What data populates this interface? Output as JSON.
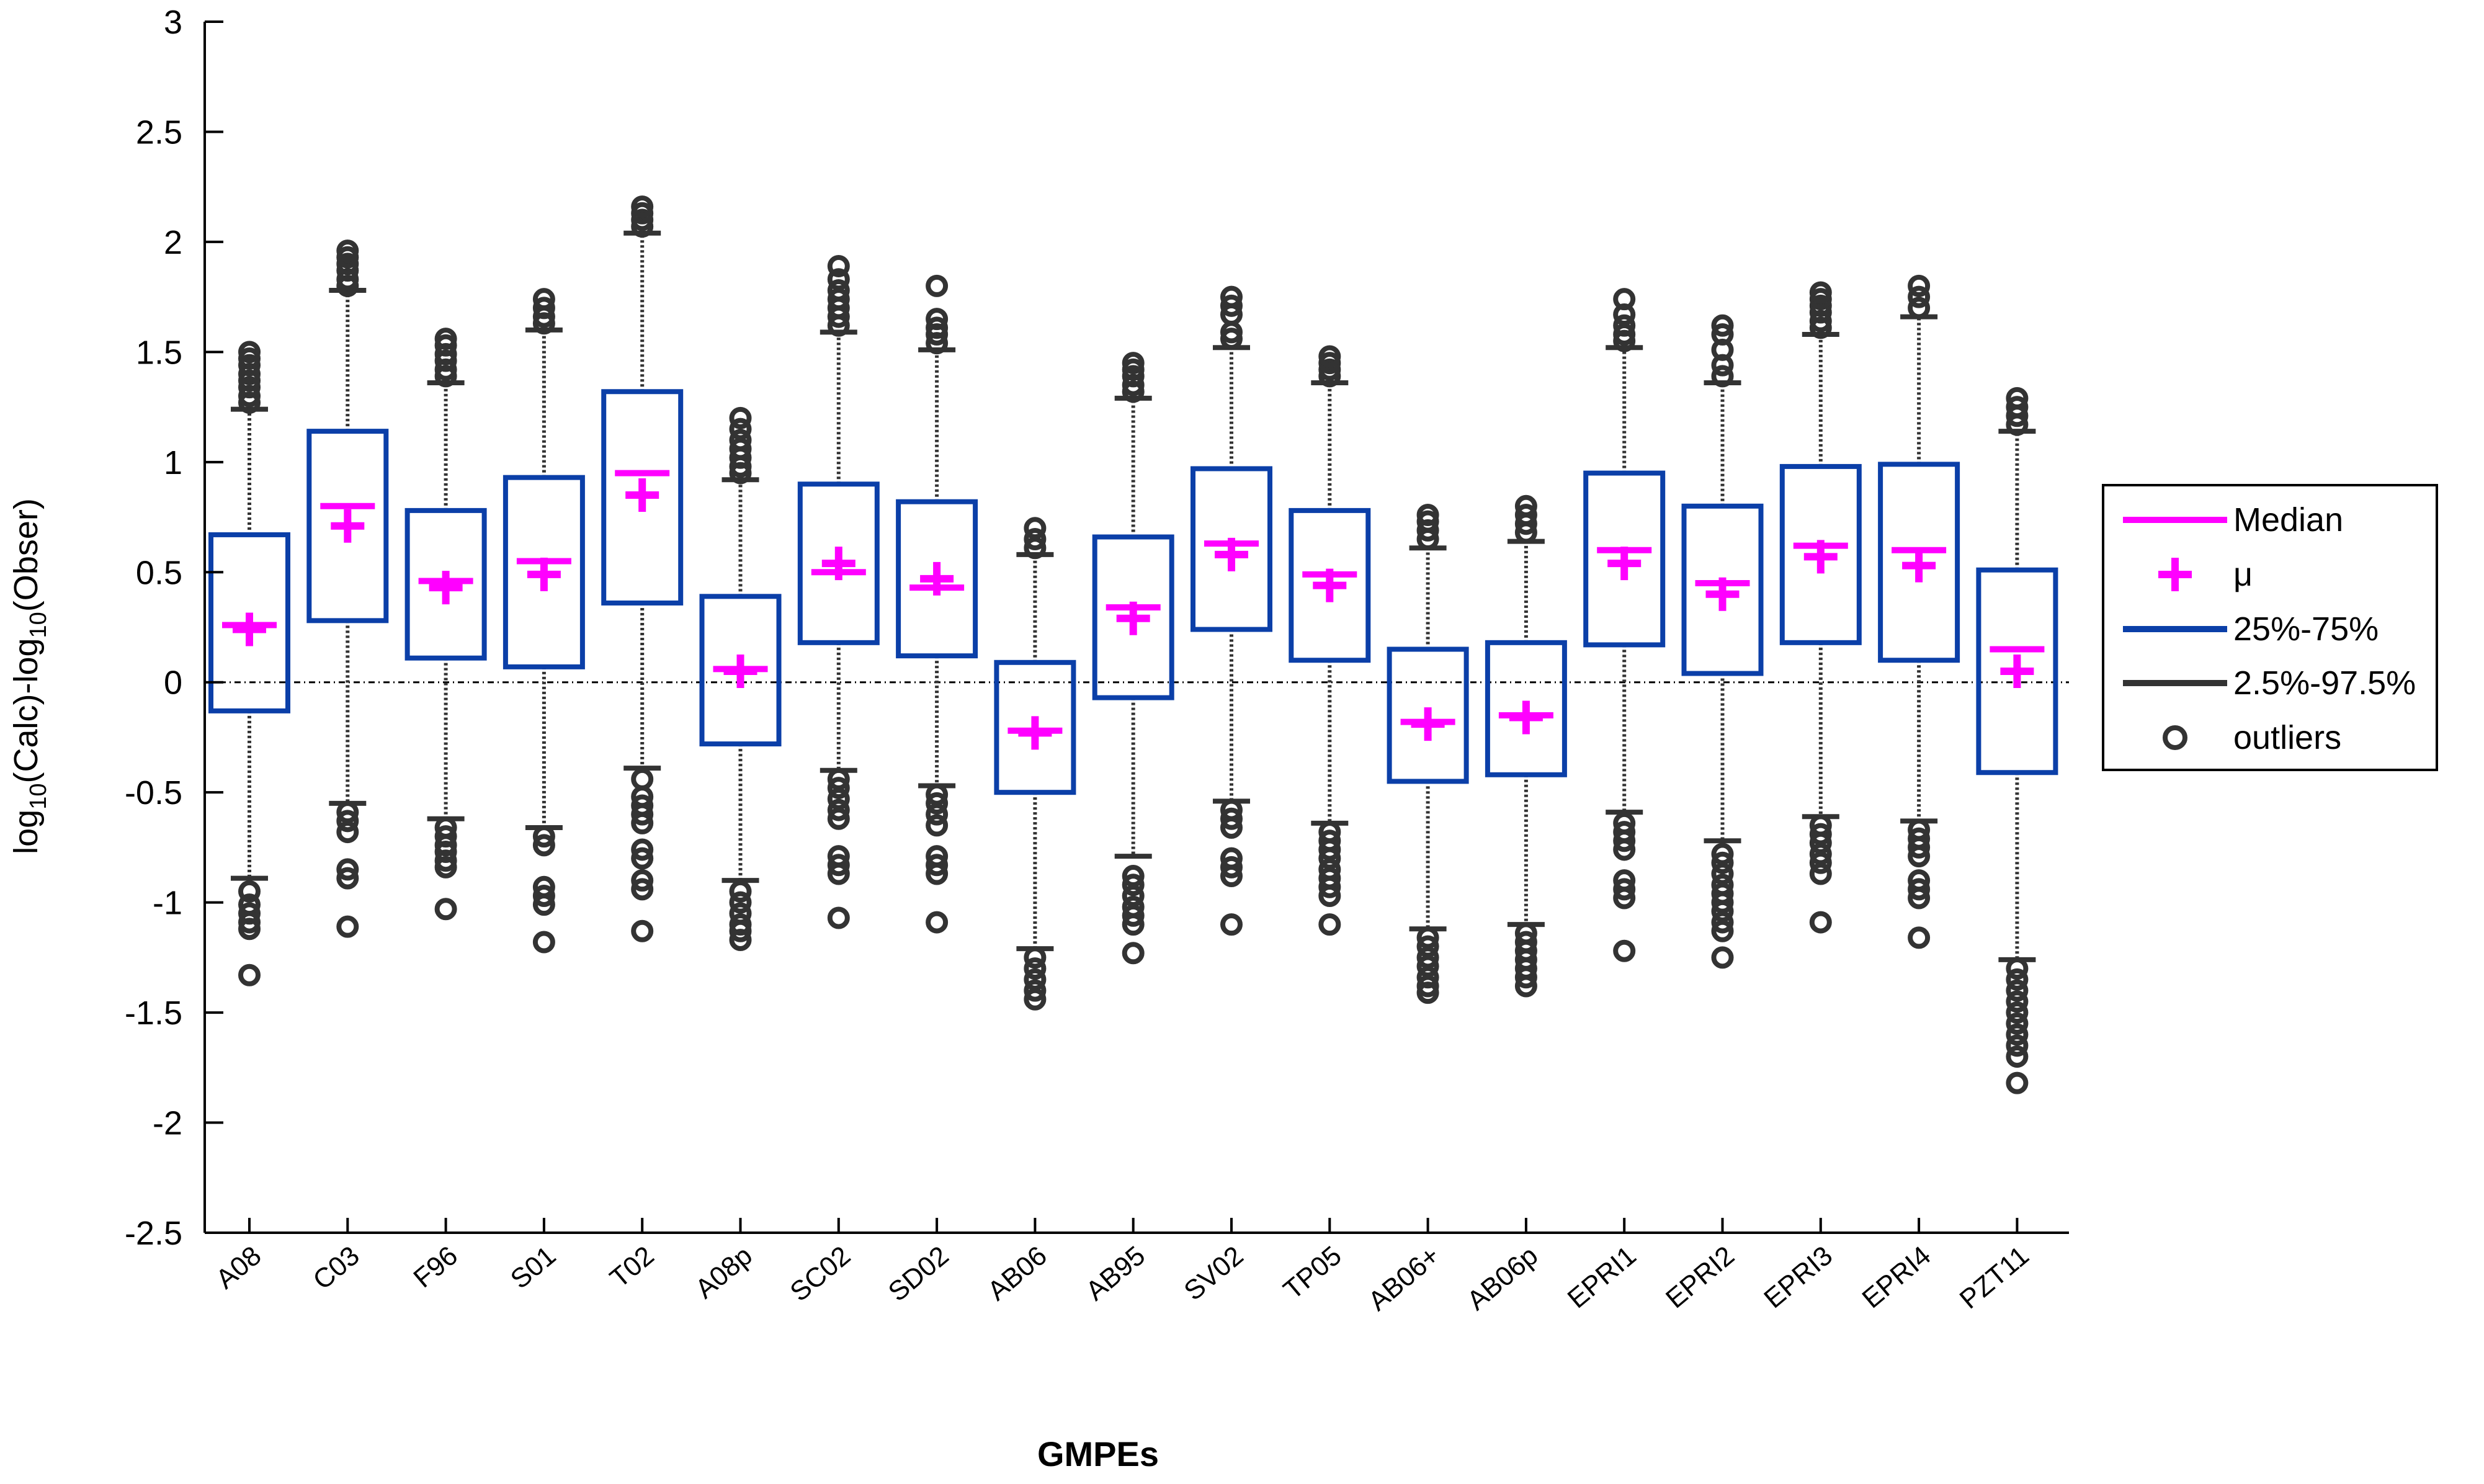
{
  "chart_data": {
    "type": "box",
    "xlabel": "GMPEs",
    "ylabel": {
      "prefix": "log",
      "sub1": "10",
      "mid": "(Calc)-log",
      "sub2": "10",
      "suffix": "(Obser)"
    },
    "ylim": [
      -2.5,
      3
    ],
    "yticks": [
      -2.5,
      -2,
      -1.5,
      -1,
      -0.5,
      0,
      0.5,
      1,
      1.5,
      2,
      2.5,
      3
    ],
    "ytick_labels": [
      "-2.5",
      "-2",
      "-1.5",
      "-1",
      "-0.5",
      "0",
      "0.5",
      "1",
      "1.5",
      "2",
      "2.5",
      "3"
    ],
    "reference_line": 0,
    "colors": {
      "median": "#ff00ff",
      "mean": "#ff00ff",
      "box": "#0b3fa8",
      "whisker": "#333333",
      "outlier": "#333333",
      "reference": "#000000"
    },
    "legend": {
      "placement": "right",
      "entries": [
        {
          "key": "median",
          "label": "Median"
        },
        {
          "key": "mean",
          "label": "μ"
        },
        {
          "key": "box",
          "label": "25%-75%"
        },
        {
          "key": "whisker",
          "label": "2.5%-97.5%"
        },
        {
          "key": "outlier",
          "label": "outliers"
        }
      ]
    },
    "categories": [
      "A08",
      "C03",
      "F96",
      "S01",
      "T02",
      "A08p",
      "SC02",
      "SD02",
      "AB06",
      "AB95",
      "SV02",
      "TP05",
      "AB06+",
      "AB06p",
      "EPRI1",
      "EPRI2",
      "EPRI3",
      "EPRI4",
      "PZT11"
    ],
    "series": [
      {
        "label": "A08",
        "q1": -0.13,
        "q3": 0.67,
        "median": 0.26,
        "mean": 0.24,
        "whisker_low": -0.89,
        "whisker_high": 1.24,
        "outliers_high": [
          1.27,
          1.3,
          1.34,
          1.37,
          1.4,
          1.44,
          1.47,
          1.5
        ],
        "outliers_low": [
          -0.95,
          -1.01,
          -1.05,
          -1.09,
          -1.12,
          -1.33
        ]
      },
      {
        "label": "C03",
        "q1": 0.28,
        "q3": 1.14,
        "median": 0.8,
        "mean": 0.71,
        "whisker_low": -0.55,
        "whisker_high": 1.78,
        "outliers_high": [
          1.8,
          1.83,
          1.87,
          1.9,
          1.93,
          1.96
        ],
        "outliers_low": [
          -0.59,
          -0.63,
          -0.68,
          -0.85,
          -0.89,
          -1.11
        ]
      },
      {
        "label": "F96",
        "q1": 0.11,
        "q3": 0.78,
        "median": 0.46,
        "mean": 0.43,
        "whisker_low": -0.62,
        "whisker_high": 1.36,
        "outliers_high": [
          1.39,
          1.42,
          1.46,
          1.49,
          1.53,
          1.56
        ],
        "outliers_low": [
          -0.66,
          -0.7,
          -0.74,
          -0.77,
          -0.81,
          -0.84,
          -1.03
        ]
      },
      {
        "label": "S01",
        "q1": 0.07,
        "q3": 0.93,
        "median": 0.55,
        "mean": 0.49,
        "whisker_low": -0.66,
        "whisker_high": 1.6,
        "outliers_high": [
          1.63,
          1.66,
          1.7,
          1.74
        ],
        "outliers_low": [
          -0.7,
          -0.74,
          -0.93,
          -0.97,
          -1.01,
          -1.18
        ]
      },
      {
        "label": "T02",
        "q1": 0.36,
        "q3": 1.32,
        "median": 0.95,
        "mean": 0.85,
        "whisker_low": -0.39,
        "whisker_high": 2.04,
        "outliers_high": [
          2.07,
          2.1,
          2.13,
          2.16
        ],
        "outliers_low": [
          -0.44,
          -0.52,
          -0.56,
          -0.6,
          -0.64,
          -0.76,
          -0.8,
          -0.9,
          -0.94,
          -1.13
        ]
      },
      {
        "label": "A08p",
        "q1": -0.28,
        "q3": 0.39,
        "median": 0.06,
        "mean": 0.05,
        "whisker_low": -0.9,
        "whisker_high": 0.92,
        "outliers_high": [
          0.95,
          0.98,
          1.02,
          1.06,
          1.1,
          1.15,
          1.2
        ],
        "outliers_low": [
          -0.95,
          -1.0,
          -1.05,
          -1.1,
          -1.13,
          -1.17
        ]
      },
      {
        "label": "SC02",
        "q1": 0.18,
        "q3": 0.9,
        "median": 0.5,
        "mean": 0.54,
        "whisker_low": -0.4,
        "whisker_high": 1.59,
        "outliers_high": [
          1.62,
          1.66,
          1.7,
          1.74,
          1.78,
          1.83,
          1.89
        ],
        "outliers_low": [
          -0.44,
          -0.48,
          -0.53,
          -0.58,
          -0.62,
          -0.79,
          -0.83,
          -0.87,
          -1.07
        ]
      },
      {
        "label": "SD02",
        "q1": 0.12,
        "q3": 0.82,
        "median": 0.43,
        "mean": 0.47,
        "whisker_low": -0.47,
        "whisker_high": 1.51,
        "outliers_high": [
          1.54,
          1.58,
          1.61,
          1.65,
          1.8
        ],
        "outliers_low": [
          -0.51,
          -0.55,
          -0.6,
          -0.65,
          -0.79,
          -0.83,
          -0.87,
          -1.09
        ]
      },
      {
        "label": "AB06",
        "q1": -0.5,
        "q3": 0.09,
        "median": -0.22,
        "mean": -0.23,
        "whisker_low": -1.21,
        "whisker_high": 0.58,
        "outliers_high": [
          0.61,
          0.65,
          0.7
        ],
        "outliers_low": [
          -1.25,
          -1.3,
          -1.35,
          -1.4,
          -1.44
        ]
      },
      {
        "label": "AB95",
        "q1": -0.07,
        "q3": 0.66,
        "median": 0.34,
        "mean": 0.29,
        "whisker_low": -0.79,
        "whisker_high": 1.29,
        "outliers_high": [
          1.32,
          1.35,
          1.39,
          1.42,
          1.45
        ],
        "outliers_low": [
          -0.88,
          -0.92,
          -0.97,
          -1.02,
          -1.06,
          -1.1,
          -1.23
        ]
      },
      {
        "label": "SV02",
        "q1": 0.24,
        "q3": 0.97,
        "median": 0.63,
        "mean": 0.58,
        "whisker_low": -0.54,
        "whisker_high": 1.52,
        "outliers_high": [
          1.56,
          1.59,
          1.67,
          1.71,
          1.75
        ],
        "outliers_low": [
          -0.58,
          -0.62,
          -0.66,
          -0.8,
          -0.84,
          -0.88,
          -1.1
        ]
      },
      {
        "label": "TP05",
        "q1": 0.1,
        "q3": 0.78,
        "median": 0.49,
        "mean": 0.44,
        "whisker_low": -0.64,
        "whisker_high": 1.36,
        "outliers_high": [
          1.39,
          1.42,
          1.45,
          1.48
        ],
        "outliers_low": [
          -0.68,
          -0.72,
          -0.76,
          -0.8,
          -0.85,
          -0.89,
          -0.93,
          -0.97,
          -1.1
        ]
      },
      {
        "label": "AB06+",
        "q1": -0.45,
        "q3": 0.15,
        "median": -0.18,
        "mean": -0.19,
        "whisker_low": -1.12,
        "whisker_high": 0.61,
        "outliers_high": [
          0.65,
          0.69,
          0.73,
          0.76
        ],
        "outliers_low": [
          -1.16,
          -1.2,
          -1.25,
          -1.29,
          -1.34,
          -1.38,
          -1.41
        ]
      },
      {
        "label": "AB06p",
        "q1": -0.42,
        "q3": 0.18,
        "median": -0.15,
        "mean": -0.16,
        "whisker_low": -1.1,
        "whisker_high": 0.64,
        "outliers_high": [
          0.68,
          0.72,
          0.76,
          0.8
        ],
        "outliers_low": [
          -1.14,
          -1.18,
          -1.22,
          -1.26,
          -1.3,
          -1.34,
          -1.38
        ]
      },
      {
        "label": "EPRI1",
        "q1": 0.17,
        "q3": 0.95,
        "median": 0.6,
        "mean": 0.54,
        "whisker_low": -0.59,
        "whisker_high": 1.52,
        "outliers_high": [
          1.55,
          1.58,
          1.62,
          1.67,
          1.74
        ],
        "outliers_low": [
          -0.64,
          -0.68,
          -0.72,
          -0.76,
          -0.9,
          -0.94,
          -0.98,
          -1.22
        ]
      },
      {
        "label": "EPRI2",
        "q1": 0.04,
        "q3": 0.8,
        "median": 0.45,
        "mean": 0.4,
        "whisker_low": -0.72,
        "whisker_high": 1.36,
        "outliers_high": [
          1.39,
          1.44,
          1.51,
          1.58,
          1.62
        ],
        "outliers_low": [
          -0.78,
          -0.82,
          -0.87,
          -0.92,
          -0.96,
          -1.0,
          -1.04,
          -1.09,
          -1.13,
          -1.25
        ]
      },
      {
        "label": "EPRI3",
        "q1": 0.18,
        "q3": 0.98,
        "median": 0.62,
        "mean": 0.57,
        "whisker_low": -0.61,
        "whisker_high": 1.58,
        "outliers_high": [
          1.61,
          1.64,
          1.68,
          1.71,
          1.74,
          1.77
        ],
        "outliers_low": [
          -0.65,
          -0.69,
          -0.73,
          -0.78,
          -0.82,
          -0.87,
          -1.09
        ]
      },
      {
        "label": "EPRI4",
        "q1": 0.1,
        "q3": 0.99,
        "median": 0.6,
        "mean": 0.53,
        "whisker_low": -0.63,
        "whisker_high": 1.66,
        "outliers_high": [
          1.7,
          1.75,
          1.8
        ],
        "outliers_low": [
          -0.67,
          -0.71,
          -0.75,
          -0.79,
          -0.9,
          -0.94,
          -0.98,
          -1.16
        ]
      },
      {
        "label": "PZT11",
        "q1": -0.41,
        "q3": 0.51,
        "median": 0.15,
        "mean": 0.05,
        "whisker_low": -1.26,
        "whisker_high": 1.14,
        "outliers_high": [
          1.17,
          1.21,
          1.25,
          1.29
        ],
        "outliers_low": [
          -1.3,
          -1.35,
          -1.4,
          -1.45,
          -1.5,
          -1.55,
          -1.6,
          -1.65,
          -1.7,
          -1.82
        ]
      }
    ]
  }
}
